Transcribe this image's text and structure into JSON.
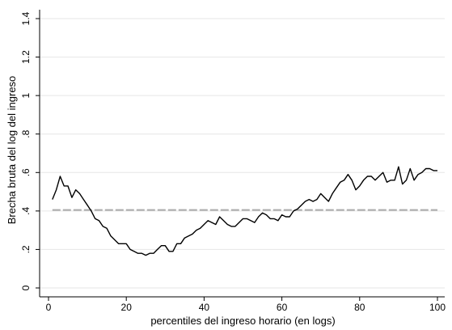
{
  "chart_data": {
    "type": "line",
    "title": "",
    "xlabel": "percentiles del ingreso horario (en logs)",
    "ylabel": "Brecha bruta del log del ingreso",
    "xlim": [
      0,
      100
    ],
    "ylim": [
      0,
      1.4
    ],
    "x_ticks": [
      0,
      20,
      40,
      60,
      80,
      100
    ],
    "x_tick_labels": [
      "0",
      "20",
      "40",
      "60",
      "80",
      "100"
    ],
    "y_ticks": [
      0,
      0.2,
      0.4,
      0.6,
      0.8,
      1,
      1.2,
      1.4
    ],
    "y_tick_labels": [
      "0",
      ".2",
      ".4",
      ".6",
      ".8",
      "1",
      "1.2",
      "1.4"
    ],
    "grid": "horizontal",
    "legend": "none",
    "colors": {
      "line": "#000000",
      "reference": "#aaaaaa",
      "grid": "#e6e6e6",
      "axis": "#000000"
    },
    "reference_line": {
      "y": 0.405,
      "style": "dashed"
    },
    "series": [
      {
        "x": [
          1,
          2,
          3,
          4,
          5,
          6,
          7,
          8,
          9,
          10,
          11,
          12,
          13,
          14,
          15,
          16,
          17,
          18,
          19,
          20,
          21,
          22,
          23,
          24,
          25,
          26,
          27,
          28,
          29,
          30,
          31,
          32,
          33,
          34,
          35,
          36,
          37,
          38,
          39,
          40,
          41,
          42,
          43,
          44,
          45,
          46,
          47,
          48,
          49,
          50,
          51,
          52,
          53,
          54,
          55,
          56,
          57,
          58,
          59,
          60,
          61,
          62,
          63,
          64,
          65,
          66,
          67,
          68,
          69,
          70,
          71,
          72,
          73,
          74,
          75,
          76,
          77,
          78,
          79,
          80,
          81,
          82,
          83,
          84,
          85,
          86,
          87,
          88,
          89,
          90,
          91,
          92,
          93,
          94,
          95,
          96,
          97,
          98,
          99,
          100
        ],
        "y": [
          0.46,
          0.51,
          0.58,
          0.53,
          0.53,
          0.47,
          0.51,
          0.49,
          0.46,
          0.43,
          0.4,
          0.36,
          0.35,
          0.32,
          0.31,
          0.27,
          0.25,
          0.23,
          0.23,
          0.23,
          0.2,
          0.19,
          0.18,
          0.18,
          0.17,
          0.18,
          0.18,
          0.2,
          0.22,
          0.22,
          0.19,
          0.19,
          0.23,
          0.23,
          0.26,
          0.27,
          0.28,
          0.3,
          0.31,
          0.33,
          0.35,
          0.34,
          0.33,
          0.37,
          0.35,
          0.33,
          0.32,
          0.32,
          0.34,
          0.36,
          0.36,
          0.35,
          0.34,
          0.37,
          0.39,
          0.38,
          0.36,
          0.36,
          0.35,
          0.38,
          0.37,
          0.37,
          0.4,
          0.41,
          0.43,
          0.45,
          0.46,
          0.45,
          0.46,
          0.49,
          0.47,
          0.45,
          0.49,
          0.52,
          0.55,
          0.56,
          0.59,
          0.56,
          0.51,
          0.53,
          0.56,
          0.58,
          0.58,
          0.56,
          0.58,
          0.6,
          0.55,
          0.56,
          0.56,
          0.63,
          0.54,
          0.56,
          0.62,
          0.56,
          0.59,
          0.6,
          0.62,
          0.62,
          0.61,
          0.61
        ]
      }
    ]
  }
}
